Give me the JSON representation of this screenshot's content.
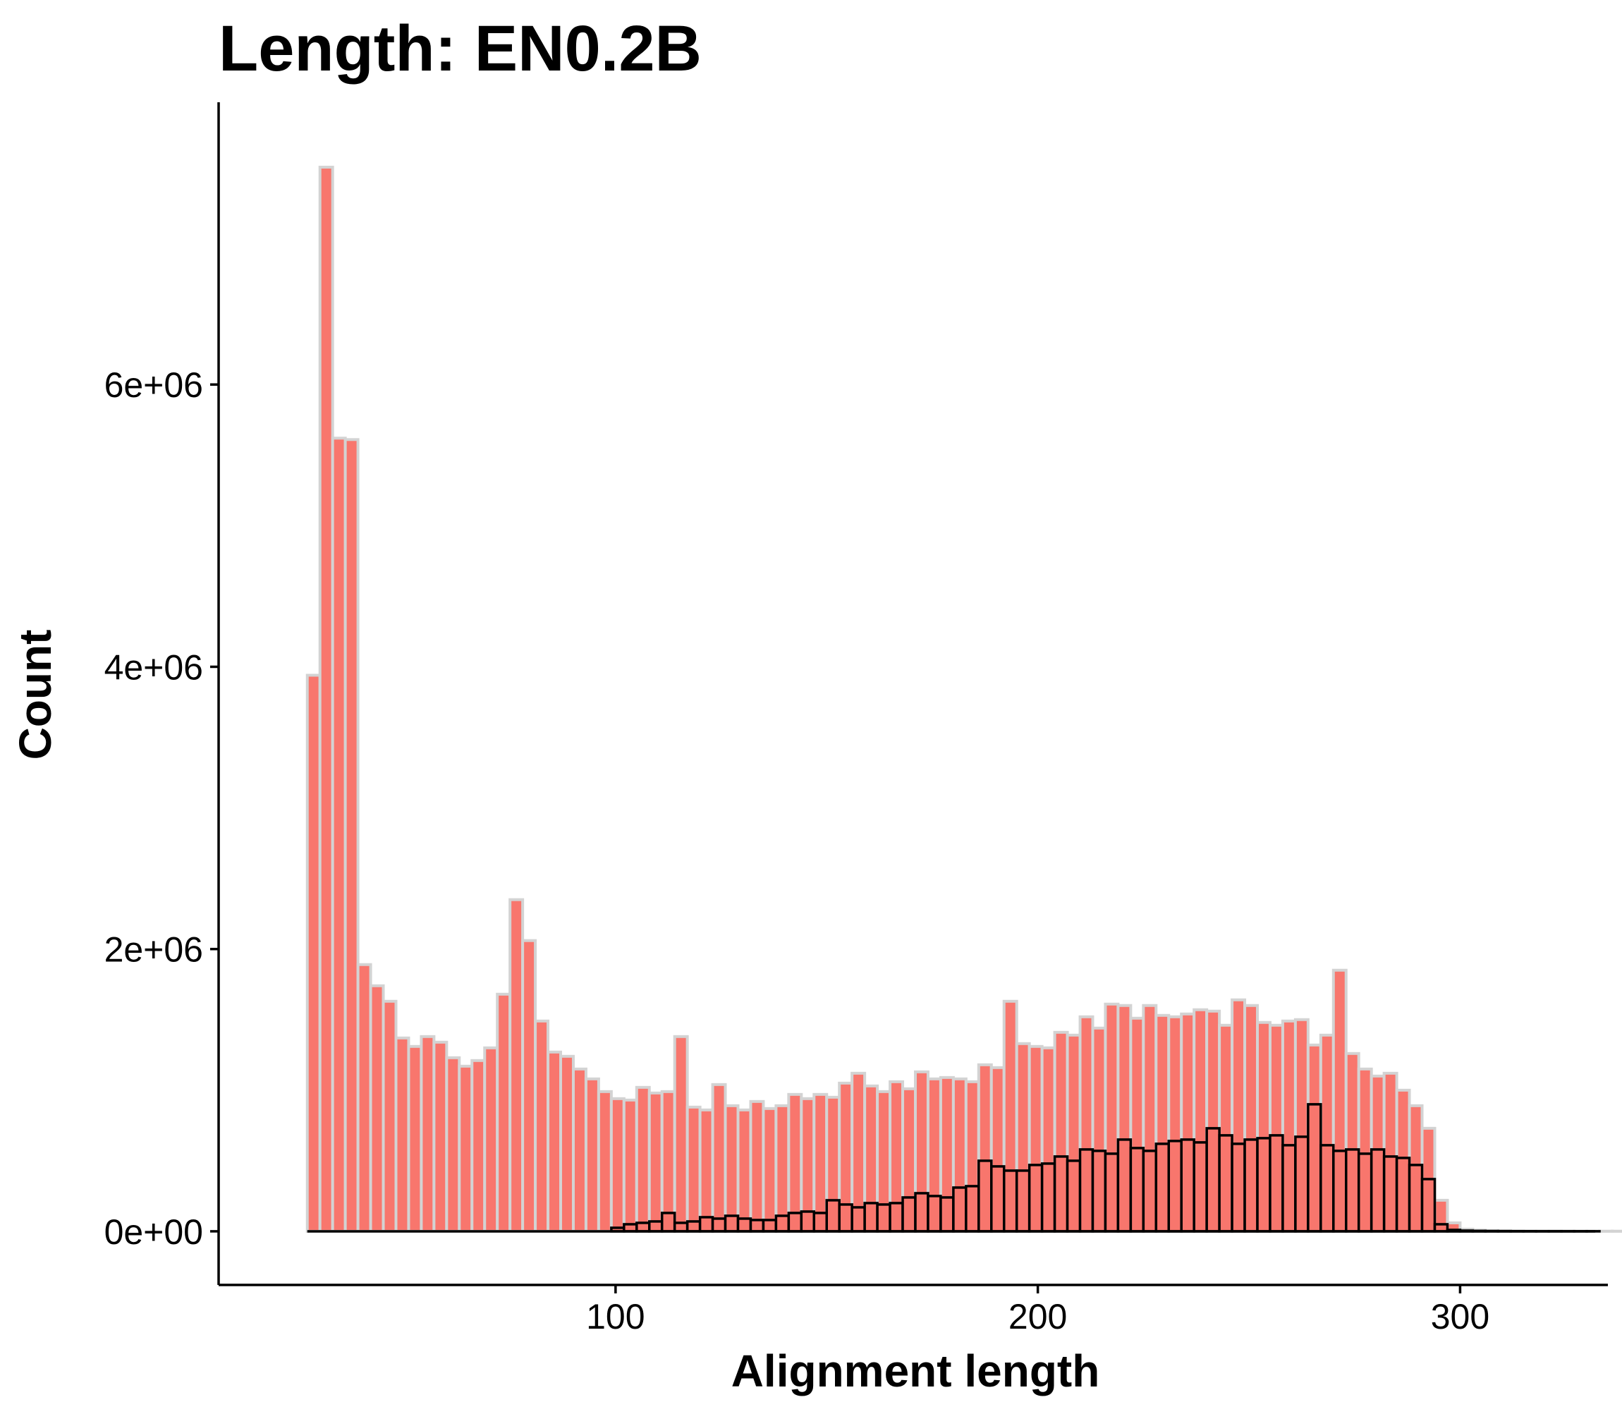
{
  "chart_data": {
    "type": "bar",
    "title": "Length: EN0.2B",
    "xlabel": "Alignment length",
    "ylabel": "Count",
    "x_ticks": [
      "100",
      "200",
      "300"
    ],
    "x_tick_values": [
      100,
      200,
      300
    ],
    "y_ticks": [
      "0e+00",
      "2e+06",
      "4e+06",
      "6e+06"
    ],
    "y_tick_values": [
      0,
      2000000,
      4000000,
      6000000
    ],
    "xlim": [
      6,
      335
    ],
    "ylim": [
      -380000,
      8000000
    ],
    "bin_width": 3,
    "colors": {
      "fill": "#F8766D",
      "all_outline": "#D3D3D3",
      "subset_outline": "#000000",
      "axis": "#000000"
    },
    "series": [
      {
        "start": 27,
        "values": [
          3940000,
          7540000,
          5620000,
          5610000,
          1890000,
          1740000,
          1630000,
          1370000,
          1310000,
          1380000,
          1340000,
          1230000,
          1170000,
          1210000,
          1300000,
          1680000,
          2350000,
          2060000,
          1490000,
          1270000,
          1240000,
          1150000,
          1080000,
          990000,
          940000,
          930000,
          1020000,
          980000,
          990000,
          1380000,
          880000,
          860000,
          1040000,
          890000,
          860000,
          920000,
          870000,
          890000,
          970000,
          940000,
          970000,
          950000,
          1050000,
          1120000,
          1030000,
          990000,
          1060000,
          1010000,
          1130000,
          1080000,
          1090000,
          1080000,
          1060000,
          1180000,
          1160000,
          1630000,
          1330000,
          1310000,
          1300000,
          1410000,
          1390000,
          1520000,
          1440000,
          1610000,
          1600000,
          1510000,
          1600000,
          1530000,
          1520000,
          1540000,
          1570000,
          1560000,
          1460000,
          1640000,
          1600000,
          1480000,
          1460000,
          1490000,
          1500000,
          1320000,
          1390000,
          1850000,
          1260000,
          1150000,
          1100000,
          1120000,
          1000000,
          890000,
          730000,
          220000,
          60000,
          15000,
          8000,
          5000,
          4000,
          3000,
          2000,
          2000,
          2000,
          1500,
          1000,
          1000,
          1000,
          1000,
          1000,
          500
        ]
      },
      {
        "start": 99,
        "values": [
          25000,
          50000,
          60000,
          70000,
          130000,
          60000,
          70000,
          100000,
          90000,
          110000,
          90000,
          80000,
          80000,
          110000,
          130000,
          140000,
          130000,
          220000,
          190000,
          170000,
          200000,
          190000,
          200000,
          240000,
          270000,
          250000,
          240000,
          310000,
          320000,
          500000,
          460000,
          430000,
          430000,
          470000,
          480000,
          530000,
          500000,
          580000,
          570000,
          550000,
          650000,
          590000,
          570000,
          620000,
          640000,
          650000,
          630000,
          730000,
          680000,
          620000,
          650000,
          660000,
          680000,
          610000,
          670000,
          900000,
          610000,
          570000,
          580000,
          550000,
          580000,
          530000,
          520000,
          470000,
          370000,
          50000,
          10000,
          5000,
          3000,
          2000,
          1500,
          1000,
          1000,
          500,
          500,
          500,
          500,
          500
        ]
      }
    ]
  }
}
